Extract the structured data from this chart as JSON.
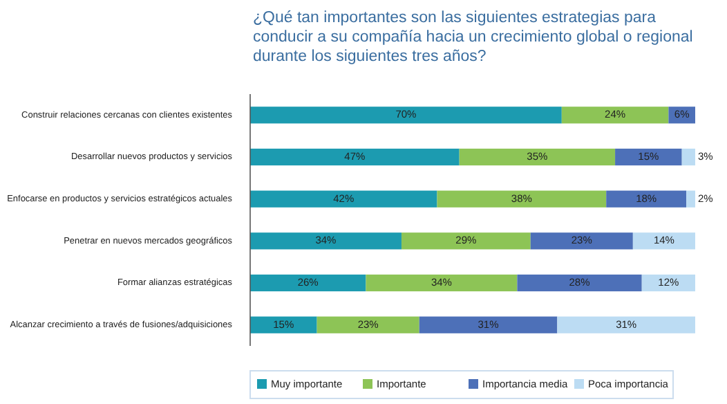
{
  "chart_data": {
    "type": "bar",
    "orientation": "horizontal",
    "stacked": true,
    "title": "¿Qué tan importantes son las siguientes estrategias para conducir a su compañía hacia un crecimiento global o regional durante los siguientes tres años?",
    "categories": [
      "Construir relaciones cercanas con clientes existentes",
      "Desarrollar nuevos productos y servicios",
      "Enfocarse en productos y servicios estratégicos actuales",
      "Penetrar en nuevos mercados geográficos",
      "Formar alianzas estratégicas",
      "Alcanzar crecimiento a través de fusiones/adquisiciones"
    ],
    "series": [
      {
        "name": "Muy importante",
        "color": "#1c9bb0",
        "values": [
          70,
          47,
          42,
          34,
          26,
          15
        ],
        "value_labels": [
          "70%",
          "47%",
          "42%",
          "34%",
          "26%",
          "15%"
        ]
      },
      {
        "name": "Importante",
        "color": "#8dc456",
        "values": [
          24,
          35,
          38,
          29,
          34,
          23
        ],
        "value_labels": [
          "24%",
          "35%",
          "38%",
          "29%",
          "34%",
          "23%"
        ]
      },
      {
        "name": "Importancia media",
        "color": "#4d70b8",
        "values": [
          6,
          15,
          18,
          23,
          28,
          31
        ],
        "value_labels": [
          "6%",
          "15%",
          "18%",
          "23%",
          "28%",
          "31%"
        ]
      },
      {
        "name": "Poca importancia",
        "color": "#bcdcf3",
        "values": [
          null,
          3,
          2,
          14,
          12,
          31
        ],
        "value_labels": [
          null,
          "3%",
          "2%",
          "14%",
          "12%",
          "31%"
        ]
      }
    ],
    "xlim": [
      0,
      100
    ],
    "tick_labels": "y",
    "legend": "bottom"
  }
}
